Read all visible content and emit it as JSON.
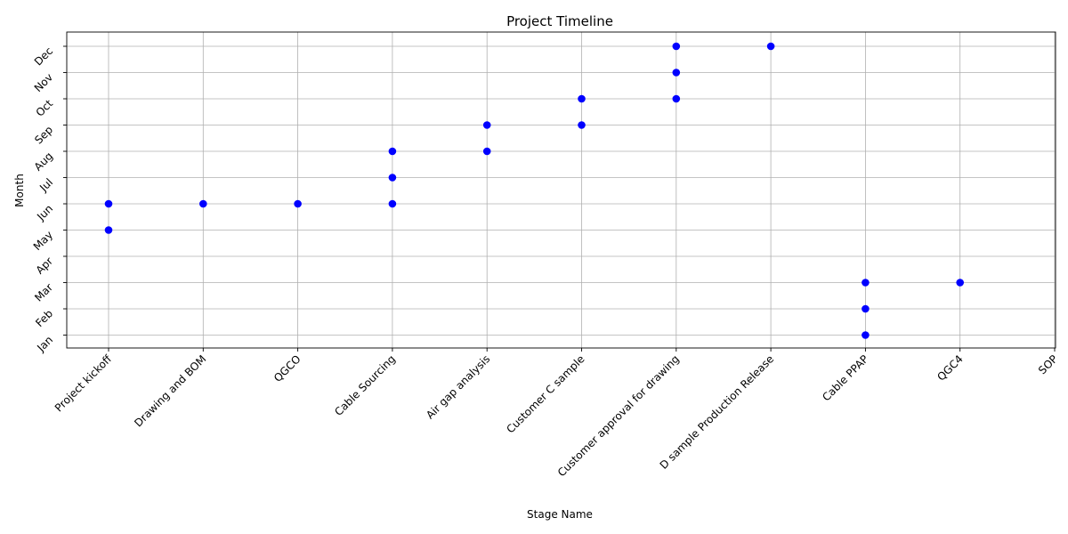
{
  "chart_data": {
    "type": "scatter",
    "title": "Project Timeline",
    "xlabel": "Stage Name",
    "ylabel": "Month",
    "categories": [
      "Project kickoff",
      "Drawing and BOM",
      "QGCO",
      "Cable Sourcing",
      "Air gap analysis",
      "Customer C sample",
      "Customer approval for drawing",
      "D sample Production Release",
      "Cable PPAP",
      "QGC4",
      "SOP"
    ],
    "y_ticks": [
      "Jan",
      "Feb",
      "Mar",
      "Apr",
      "May",
      "Jun",
      "Jul",
      "Aug",
      "Sep",
      "Oct",
      "Nov",
      "Dec"
    ],
    "grid": true,
    "color": "#0000ff",
    "points": [
      {
        "x": "Project kickoff",
        "y": "May"
      },
      {
        "x": "Project kickoff",
        "y": "Jun"
      },
      {
        "x": "Drawing and BOM",
        "y": "Jun"
      },
      {
        "x": "QGCO",
        "y": "Jun"
      },
      {
        "x": "Cable Sourcing",
        "y": "Jun"
      },
      {
        "x": "Cable Sourcing",
        "y": "Jul"
      },
      {
        "x": "Cable Sourcing",
        "y": "Aug"
      },
      {
        "x": "Air gap analysis",
        "y": "Aug"
      },
      {
        "x": "Air gap analysis",
        "y": "Sep"
      },
      {
        "x": "Customer C sample",
        "y": "Sep"
      },
      {
        "x": "Customer C sample",
        "y": "Oct"
      },
      {
        "x": "Customer approval for drawing",
        "y": "Oct"
      },
      {
        "x": "Customer approval for drawing",
        "y": "Nov"
      },
      {
        "x": "Customer approval for drawing",
        "y": "Dec"
      },
      {
        "x": "D sample Production Release",
        "y": "Dec"
      },
      {
        "x": "Cable PPAP",
        "y": "Jan"
      },
      {
        "x": "Cable PPAP",
        "y": "Feb"
      },
      {
        "x": "Cable PPAP",
        "y": "Mar"
      },
      {
        "x": "QGC4",
        "y": "Mar"
      }
    ]
  }
}
